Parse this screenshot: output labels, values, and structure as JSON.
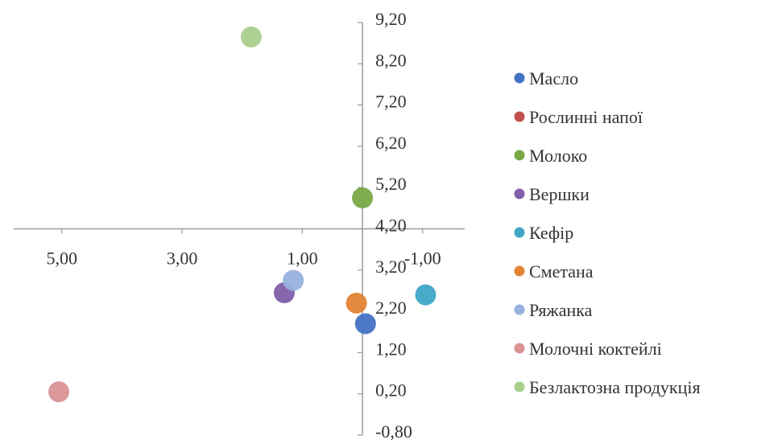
{
  "chart_data": {
    "type": "scatter",
    "title": "",
    "xlabel": "",
    "ylabel": "",
    "x_reversed": true,
    "xlim": [
      5.8,
      -1.7
    ],
    "ylim": [
      -0.8,
      9.2
    ],
    "axis_cross": {
      "x": 0.0,
      "y": 4.2
    },
    "x_ticks": [
      {
        "value": 5.0,
        "label": "5,00"
      },
      {
        "value": 3.0,
        "label": "3,00"
      },
      {
        "value": 1.0,
        "label": "1,00"
      },
      {
        "value": -1.0,
        "label": "-1,00"
      }
    ],
    "y_ticks": [
      {
        "value": 9.2,
        "label": "9,20"
      },
      {
        "value": 8.2,
        "label": "8,20"
      },
      {
        "value": 7.2,
        "label": "7,20"
      },
      {
        "value": 6.2,
        "label": "6,20"
      },
      {
        "value": 5.2,
        "label": "5,20"
      },
      {
        "value": 4.2,
        "label": "4,20"
      },
      {
        "value": 3.2,
        "label": "3,20"
      },
      {
        "value": 2.2,
        "label": "2,20"
      },
      {
        "value": 1.2,
        "label": "1,20"
      },
      {
        "value": 0.2,
        "label": "0,20"
      },
      {
        "value": -0.8,
        "label": "-0,80"
      }
    ],
    "grid": false,
    "legend_position": "right",
    "series": [
      {
        "name": "Масло",
        "color": "#4472c4",
        "x": -0.05,
        "y": 1.9
      },
      {
        "name": "Рослинні напої",
        "color": "#c0504d",
        "x": null,
        "y": null
      },
      {
        "name": "Молоко",
        "color": "#77a845",
        "x": 0.0,
        "y": 4.95
      },
      {
        "name": "Вершки",
        "color": "#7f5fa8",
        "x": 1.3,
        "y": 2.65
      },
      {
        "name": "Кефір",
        "color": "#3fa6c7",
        "x": -1.05,
        "y": 2.6
      },
      {
        "name": "Сметана",
        "color": "#e38434",
        "x": 0.1,
        "y": 2.4
      },
      {
        "name": "Ряжанка",
        "color": "#98b1df",
        "x": 1.15,
        "y": 2.95
      },
      {
        "name": "Молочні коктейлі",
        "color": "#d99493",
        "x": 5.05,
        "y": 0.25
      },
      {
        "name": "Безлактозна продукція",
        "color": "#a8cf8c",
        "x": 1.85,
        "y": 8.85
      }
    ]
  }
}
